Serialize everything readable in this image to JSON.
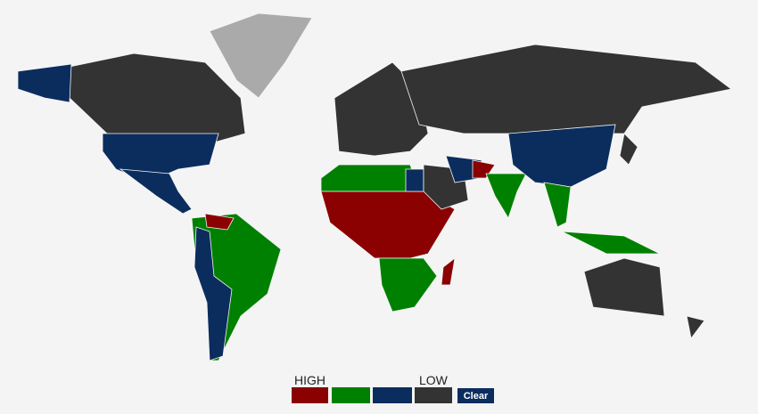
{
  "legend": {
    "high_label": "HIGH",
    "low_label": "LOW",
    "colors": [
      "#8b0000",
      "#008000",
      "#0b2d5e",
      "#333333"
    ]
  },
  "button": {
    "label": "Clear"
  }
}
